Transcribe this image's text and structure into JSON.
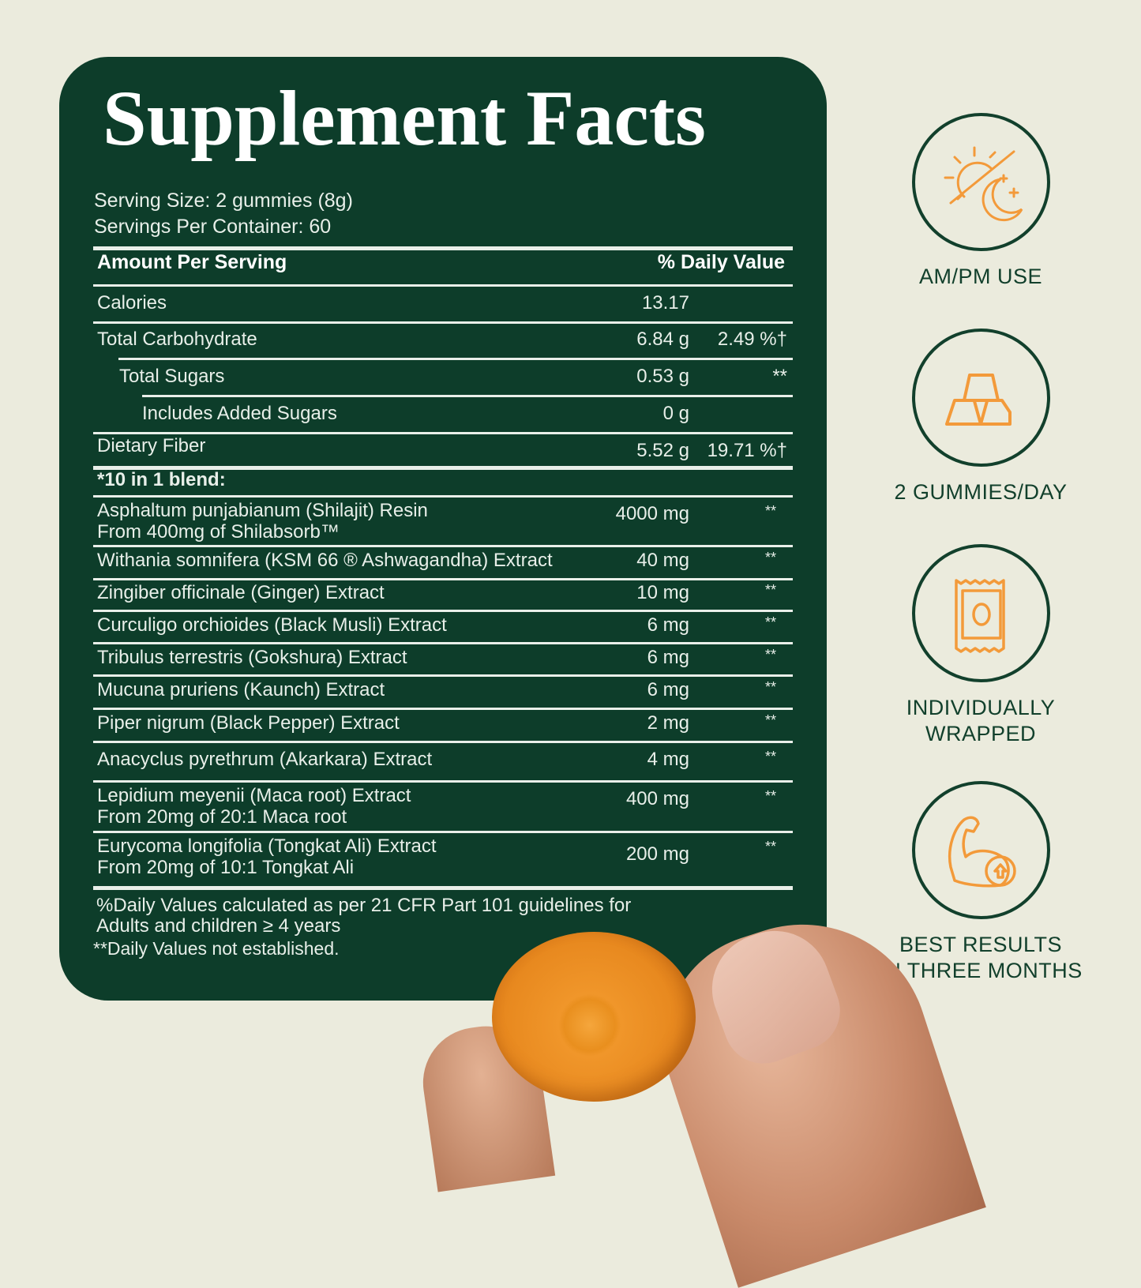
{
  "title": "Supplement Facts",
  "serving_size": "Serving Size: 2 gummies (8g)",
  "servings_per_container": "Servings Per Container: 60",
  "header": {
    "amount": "Amount Per Serving",
    "dv": "% Daily Value"
  },
  "nutrients": [
    {
      "name": "Calories",
      "amount": "13.17",
      "dv": ""
    },
    {
      "name": "Total Carbohydrate",
      "amount": "6.84 g",
      "dv": "2.49 %†"
    },
    {
      "name": "Total Sugars",
      "amount": "0.53 g",
      "dv": "**"
    },
    {
      "name": "Includes Added Sugars",
      "amount": "0 g",
      "dv": ""
    },
    {
      "name": "Dietary Fiber",
      "amount": "5.52 g",
      "dv": "19.71 %†"
    }
  ],
  "blend_label": "*10 in 1 blend:",
  "blend": [
    {
      "name": "Asphaltum punjabianum (Shilajit) Resin",
      "sub": "From 400mg of Shilabsorb™",
      "amount": "4000 mg",
      "dv": "**"
    },
    {
      "name": "Withania somnifera (KSM 66 ® Ashwagandha) Extract",
      "sub": "",
      "amount": "40 mg",
      "dv": "**"
    },
    {
      "name": "Zingiber officinale (Ginger) Extract",
      "sub": "",
      "amount": "10 mg",
      "dv": "**"
    },
    {
      "name": "Curculigo orchioides (Black Musli) Extract",
      "sub": "",
      "amount": "6 mg",
      "dv": "**"
    },
    {
      "name": "Tribulus terrestris (Gokshura) Extract",
      "sub": "",
      "amount": "6 mg",
      "dv": "**"
    },
    {
      "name": "Mucuna pruriens (Kaunch) Extract",
      "sub": "",
      "amount": "6 mg",
      "dv": "**"
    },
    {
      "name": "Piper nigrum (Black Pepper) Extract",
      "sub": "",
      "amount": "2 mg",
      "dv": "**"
    },
    {
      "name": "Anacyclus pyrethrum (Akarkara) Extract",
      "sub": "",
      "amount": "4 mg",
      "dv": "**"
    },
    {
      "name": "Lepidium meyenii (Maca root) Extract",
      "sub": "From 20mg of 20:1 Maca root",
      "amount": "400 mg",
      "dv": "**"
    },
    {
      "name": "Eurycoma longifolia (Tongkat Ali) Extract",
      "sub": "From 20mg of 10:1 Tongkat Ali",
      "amount": "200 mg",
      "dv": "**"
    }
  ],
  "footnote1": "%Daily Values calculated as per 21 CFR Part 101 guidelines for",
  "footnote2": "Adults and children ≥ 4 years",
  "footnote3": "**Daily Values not established.",
  "features": [
    {
      "icon": "sun-moon-icon",
      "label1": "AM/PM USE",
      "label2": ""
    },
    {
      "icon": "gummy-bars-icon",
      "label1": "2 GUMMIES/DAY",
      "label2": ""
    },
    {
      "icon": "wrapped-packet-icon",
      "label1": "INDIVIDUALLY",
      "label2": "WRAPPED"
    },
    {
      "icon": "flexed-arm-icon",
      "label1": "BEST RESULTS",
      "label2": "IN THREE MONTHS"
    }
  ],
  "colors": {
    "background": "#ebebdd",
    "card": "#0d3d2a",
    "accent": "#f39a3a",
    "text_dark": "#12402c"
  }
}
